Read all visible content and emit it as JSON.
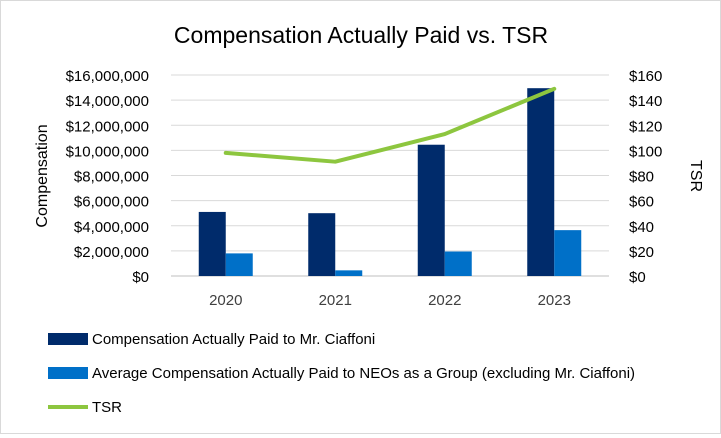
{
  "chart_data": {
    "type": "bar",
    "title": "Compensation Actually Paid vs. TSR",
    "categories": [
      "2020",
      "2021",
      "2022",
      "2023"
    ],
    "ylabel": "Compensation",
    "y2label": "TSR",
    "ylim": [
      0,
      16000000
    ],
    "y2lim": [
      0,
      160
    ],
    "yticks": [
      "$0",
      "$2,000,000",
      "$4,000,000",
      "$6,000,000",
      "$8,000,000",
      "$10,000,000",
      "$12,000,000",
      "$14,000,000",
      "$16,000,000"
    ],
    "y2ticks": [
      "$0",
      "$20",
      "$40",
      "$60",
      "$80",
      "$100",
      "$120",
      "$140",
      "$160"
    ],
    "series": [
      {
        "name": "Compensation Actually Paid to Mr. Ciaffoni",
        "kind": "bar",
        "axis": "left",
        "color": "#002B6B",
        "values": [
          5100000,
          5000000,
          10450000,
          14950000
        ]
      },
      {
        "name": "Average Compensation Actually Paid to NEOs as a Group (excluding Mr. Ciaffoni)",
        "kind": "bar",
        "axis": "left",
        "color": "#0070C8",
        "values": [
          1800000,
          450000,
          1950000,
          3650000
        ]
      },
      {
        "name": "TSR",
        "kind": "line",
        "axis": "right",
        "color": "#8DC63F",
        "values": [
          98,
          91,
          113,
          149
        ]
      }
    ],
    "legend_position": "bottom-left",
    "grid": true
  }
}
